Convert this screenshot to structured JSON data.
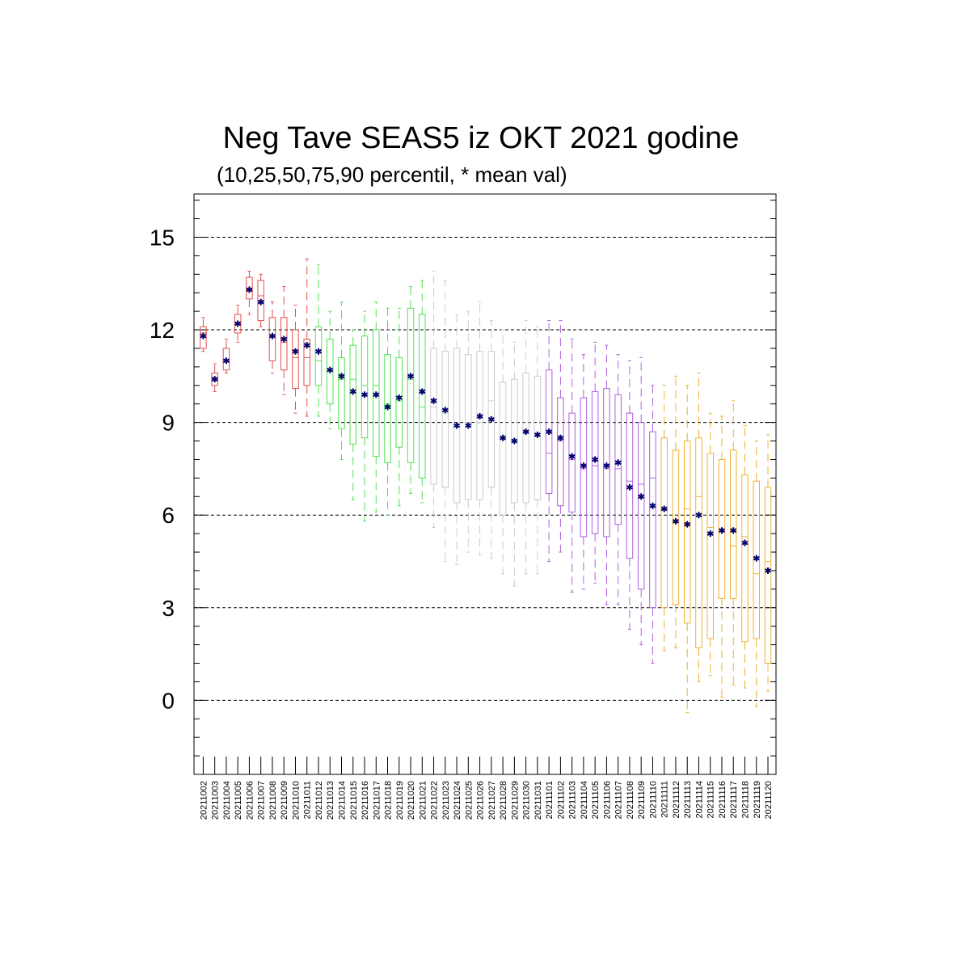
{
  "chart_data": {
    "type": "box",
    "title": "Neg Tave SEAS5 iz OKT 2021 godine",
    "subtitle": "(10,25,50,75,90 percentil, * mean val)",
    "ylim": [
      -2.4,
      16.4
    ],
    "yticks": [
      0,
      3,
      6,
      9,
      12,
      15
    ],
    "grid": "dashed-horizontal-at-major-ticks",
    "categories": [
      "20211002",
      "20211003",
      "20211004",
      "20211005",
      "20211006",
      "20211007",
      "20211008",
      "20211009",
      "20211010",
      "20211011",
      "20211012",
      "20211013",
      "20211014",
      "20211015",
      "20211016",
      "20211017",
      "20211018",
      "20211019",
      "20211020",
      "20211021",
      "20211022",
      "20211023",
      "20211024",
      "20211025",
      "20211026",
      "20211027",
      "20211028",
      "20211029",
      "20211030",
      "20211031",
      "20211101",
      "20211102",
      "20211103",
      "20211104",
      "20211105",
      "20211106",
      "20211107",
      "20211108",
      "20211109",
      "20211110",
      "20211111",
      "20211112",
      "20211113",
      "20211114",
      "20211115",
      "20211116",
      "20211117",
      "20211118",
      "20211119",
      "20211120"
    ],
    "colors": [
      "#e05050",
      "#e05050",
      "#e05050",
      "#e05050",
      "#e05050",
      "#e05050",
      "#e05050",
      "#e05050",
      "#e05050",
      "#e05050",
      "#55e055",
      "#55e055",
      "#55e055",
      "#55e055",
      "#55e055",
      "#55e055",
      "#55e055",
      "#55e055",
      "#55e055",
      "#55e055",
      "#cccccc",
      "#cccccc",
      "#cccccc",
      "#cccccc",
      "#cccccc",
      "#cccccc",
      "#cccccc",
      "#cccccc",
      "#cccccc",
      "#cccccc",
      "#b060e0",
      "#b060e0",
      "#b060e0",
      "#b060e0",
      "#b060e0",
      "#b060e0",
      "#b060e0",
      "#b060e0",
      "#b060e0",
      "#b060e0",
      "#f0b030",
      "#f0b030",
      "#f0b030",
      "#f0b030",
      "#f0b030",
      "#f0b030",
      "#f0b030",
      "#f0b030",
      "#f0b030",
      "#f0b030"
    ],
    "mean_marker_color": "#00006e",
    "p10": [
      11.3,
      10.0,
      10.6,
      11.6,
      12.5,
      12.1,
      10.6,
      9.9,
      9.3,
      9.2,
      9.2,
      8.8,
      7.8,
      6.5,
      5.8,
      6.1,
      6.0,
      6.3,
      6.7,
      6.4,
      5.6,
      4.5,
      4.4,
      4.8,
      4.7,
      4.6,
      4.1,
      3.7,
      4.1,
      4.1,
      4.5,
      4.8,
      3.5,
      3.6,
      3.8,
      3.1,
      3.1,
      2.3,
      1.8,
      1.2,
      1.6,
      1.7,
      -0.4,
      0.6,
      0.8,
      0.1,
      0.5,
      0.4,
      -0.2,
      0.3
    ],
    "p25": [
      11.4,
      10.2,
      10.7,
      11.9,
      13.0,
      12.3,
      11.0,
      10.7,
      10.1,
      10.2,
      10.2,
      9.6,
      8.8,
      8.3,
      8.5,
      7.9,
      7.7,
      8.2,
      7.7,
      7.2,
      7.0,
      6.9,
      6.4,
      6.5,
      6.5,
      6.9,
      6.0,
      6.4,
      6.4,
      6.5,
      6.7,
      6.3,
      6.1,
      5.3,
      5.4,
      5.3,
      5.7,
      4.6,
      3.6,
      3.0,
      3.0,
      3.1,
      2.5,
      1.7,
      2.0,
      3.3,
      3.3,
      1.9,
      2.0,
      1.2
    ],
    "p50": [
      11.9,
      10.4,
      11.0,
      12.2,
      13.3,
      13.1,
      11.8,
      11.6,
      11.1,
      11.1,
      11.0,
      10.7,
      10.4,
      10.4,
      10.2,
      10.2,
      9.6,
      9.7,
      10.4,
      9.5,
      9.5,
      9.3,
      8.9,
      9.0,
      9.0,
      9.7,
      8.5,
      8.4,
      8.7,
      8.6,
      8.0,
      8.4,
      7.8,
      7.5,
      7.6,
      7.5,
      7.5,
      7.1,
      7.0,
      7.2,
      6.2,
      5.8,
      6.2,
      6.6,
      5.6,
      5.5,
      5.0,
      5.3,
      4.1,
      4.5
    ],
    "p75": [
      12.1,
      10.6,
      11.4,
      12.5,
      13.7,
      13.6,
      12.4,
      12.4,
      12.0,
      11.7,
      12.1,
      11.7,
      11.1,
      11.5,
      11.8,
      12.0,
      11.2,
      11.1,
      12.7,
      12.5,
      11.4,
      11.3,
      11.4,
      11.2,
      11.3,
      11.3,
      10.3,
      10.4,
      10.6,
      10.5,
      10.7,
      9.8,
      9.3,
      9.8,
      10.0,
      10.1,
      9.9,
      9.3,
      9.0,
      8.7,
      8.5,
      8.1,
      8.4,
      8.5,
      8.0,
      7.8,
      8.1,
      7.3,
      7.1,
      6.9
    ],
    "p90": [
      12.4,
      10.9,
      11.7,
      12.8,
      13.9,
      13.8,
      12.9,
      13.4,
      12.8,
      14.3,
      14.1,
      12.6,
      12.9,
      12.0,
      12.6,
      12.9,
      12.7,
      12.7,
      13.4,
      13.6,
      13.9,
      13.6,
      12.5,
      12.6,
      12.9,
      12.3,
      12.0,
      11.6,
      12.3,
      12.1,
      12.3,
      12.3,
      11.7,
      11.2,
      11.6,
      11.5,
      11.2,
      11.0,
      11.1,
      10.2,
      10.2,
      10.5,
      10.2,
      10.6,
      9.3,
      9.2,
      9.7,
      8.9,
      8.4,
      8.6
    ],
    "mean": [
      11.8,
      10.4,
      11.0,
      12.2,
      13.3,
      12.9,
      11.8,
      11.7,
      11.3,
      11.5,
      11.3,
      10.7,
      10.5,
      10.0,
      9.9,
      9.9,
      9.5,
      9.8,
      10.5,
      10.0,
      9.7,
      9.4,
      8.9,
      8.9,
      9.2,
      9.1,
      8.5,
      8.4,
      8.7,
      8.6,
      8.7,
      8.5,
      7.9,
      7.6,
      7.8,
      7.6,
      7.7,
      6.9,
      6.6,
      6.3,
      6.2,
      5.8,
      5.7,
      6.0,
      5.4,
      5.5,
      5.5,
      5.1,
      4.6,
      4.2
    ]
  }
}
